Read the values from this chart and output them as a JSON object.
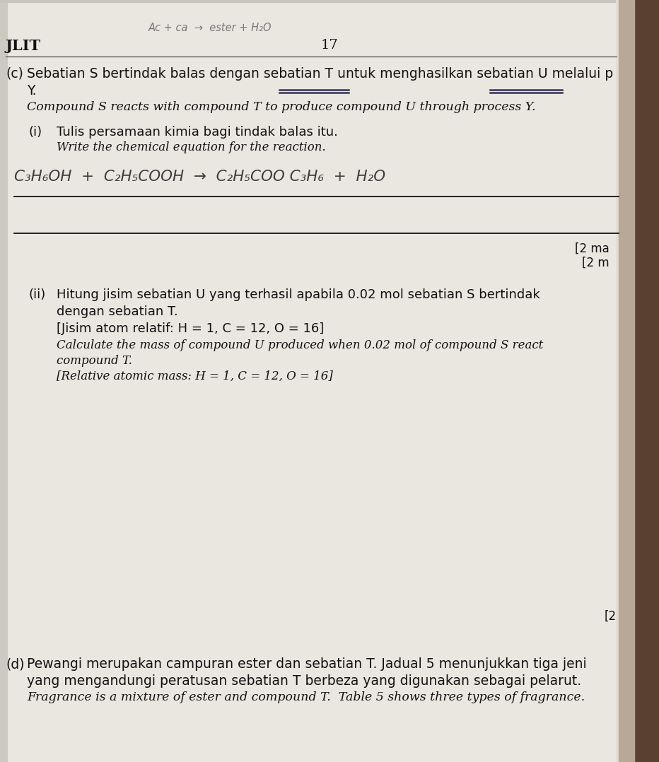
{
  "bg_color": "#e8e5e0",
  "page_color": "#dedad4",
  "right_strip_color": "#8B7355",
  "header_left": "JLIT",
  "header_center": "17",
  "handwritten_top": "Ac + ca  →  ester + H₂O",
  "section_c_label": "(c)",
  "section_c_malay": "Sebatian S bertindak balas dengan sebatian T untuk menghasilkan sebatian U melalui p",
  "section_c_malay2": "Y.",
  "section_c_english": "Compound S reacts with compound T to produce compound U through process Y.",
  "sub_i_label": "(i)",
  "sub_i_malay_1": "Tulis persamaan kimia bagi tindak balas itu.",
  "sub_i_english_1": "Write the chemical equation for the reaction.",
  "equation_handwritten": "C₃H₆OH  +  C₂H₅COOH  →  C₂H₅COO C₃H₆  +  H₂O",
  "marks_right_1": "[2 ma",
  "marks_right_2": "[2 m",
  "sub_ii_label": "(ii)",
  "sub_ii_malay_line1": "Hitung jisim sebatian U yang terhasil apabila 0.02 mol sebatian S bertindak",
  "sub_ii_malay_line2": "dengan sebatian T.",
  "sub_ii_malay_line3": "[Jisim atom relatif: H = 1, C = 12, O = 16]",
  "sub_ii_english_line1": "Calculate the mass of compound U produced when 0.02 mol of compound S react",
  "sub_ii_english_line2": "compound T.",
  "sub_ii_english_line3": "[Relative atomic mass: H = 1, C = 12, O = 16]",
  "marks_bottom": "[2",
  "section_d_label": "(d)",
  "section_d_malay_line1": "Pewangi merupakan campuran ester dan sebatian T. Jadual 5 menunjukkan tiga jeni",
  "section_d_malay_line2": "yang mengandungi peratusan sebatian T berbeza yang digunakan sebagai pelarut.",
  "section_d_english": "Fragrance is a mixture of ester and compound T.  Table 5 shows three types of fragrance."
}
